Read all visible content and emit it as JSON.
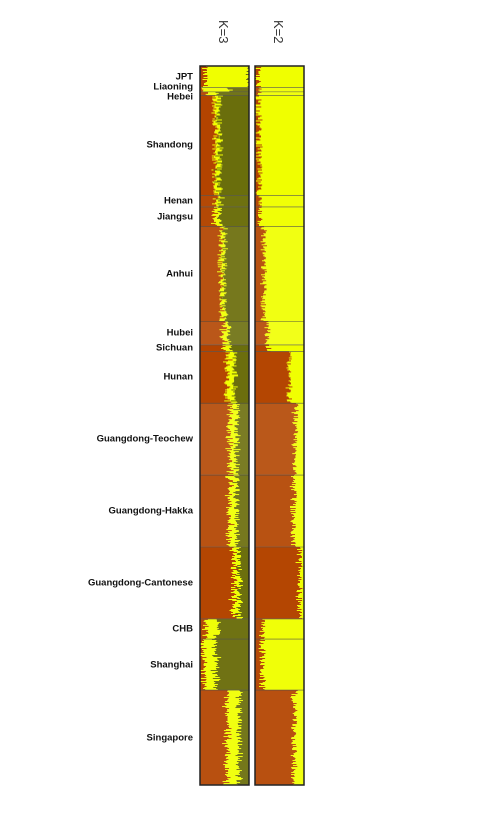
{
  "chart_data": {
    "type": "stacked-bar",
    "panels": [
      {
        "label": "K=3",
        "components": 3
      },
      {
        "label": "K=2",
        "components": 2
      }
    ],
    "colors": {
      "yellow": "#f0ff00",
      "orange": "#b34500",
      "olive": "#6b6e0c",
      "frame": "#222222"
    },
    "populations": [
      {
        "name": "JPT",
        "span": [
          0.0,
          0.03
        ],
        "k3": [
          0.9,
          0.1,
          0.0
        ],
        "k2": [
          0.95,
          0.05
        ]
      },
      {
        "name": "Liaoning",
        "span": [
          0.03,
          0.036
        ],
        "k3": [
          0.55,
          0.05,
          0.4
        ],
        "k2": [
          0.92,
          0.08
        ]
      },
      {
        "name": "Hebei",
        "span": [
          0.036,
          0.041
        ],
        "k3": [
          0.2,
          0.1,
          0.7
        ],
        "k2": [
          0.92,
          0.08
        ]
      },
      {
        "name": "Shandong",
        "span": [
          0.041,
          0.18
        ],
        "k3": [
          0.1,
          0.3,
          0.6
        ],
        "k2": [
          0.92,
          0.08
        ]
      },
      {
        "name": "Henan",
        "span": [
          0.18,
          0.196
        ],
        "k3": [
          0.1,
          0.32,
          0.58
        ],
        "k2": [
          0.9,
          0.1
        ]
      },
      {
        "name": "Jiangsu",
        "span": [
          0.196,
          0.223
        ],
        "k3": [
          0.1,
          0.3,
          0.6
        ],
        "k2": [
          0.88,
          0.12
        ]
      },
      {
        "name": "Anhui",
        "span": [
          0.223,
          0.355
        ],
        "k3": [
          0.08,
          0.42,
          0.5
        ],
        "k2": [
          0.82,
          0.18
        ]
      },
      {
        "name": "Hubei",
        "span": [
          0.355,
          0.388
        ],
        "k3": [
          0.12,
          0.48,
          0.4
        ],
        "k2": [
          0.75,
          0.25
        ]
      },
      {
        "name": "Sichuan",
        "span": [
          0.388,
          0.397
        ],
        "k3": [
          0.15,
          0.5,
          0.35
        ],
        "k2": [
          0.72,
          0.28
        ]
      },
      {
        "name": "Hunan",
        "span": [
          0.397,
          0.469
        ],
        "k3": [
          0.15,
          0.55,
          0.3
        ],
        "k2": [
          0.3,
          0.7
        ]
      },
      {
        "name": "Guangdong-Teochew",
        "span": [
          0.469,
          0.569
        ],
        "k3": [
          0.15,
          0.6,
          0.25
        ],
        "k2": [
          0.18,
          0.82
        ]
      },
      {
        "name": "Guangdong-Hakka",
        "span": [
          0.569,
          0.669
        ],
        "k3": [
          0.15,
          0.6,
          0.25
        ],
        "k2": [
          0.22,
          0.78
        ]
      },
      {
        "name": "Guangdong-Cantonese",
        "span": [
          0.669,
          0.769
        ],
        "k3": [
          0.12,
          0.68,
          0.2
        ],
        "k2": [
          0.1,
          0.9
        ]
      },
      {
        "name": "CHB",
        "span": [
          0.769,
          0.797
        ],
        "k3": [
          0.25,
          0.1,
          0.65
        ],
        "k2": [
          0.85,
          0.15
        ]
      },
      {
        "name": "Shanghai",
        "span": [
          0.797,
          0.868
        ],
        "k3": [
          0.25,
          0.08,
          0.67
        ],
        "k2": [
          0.85,
          0.15
        ]
      },
      {
        "name": "Singapore",
        "span": [
          0.868,
          1.0
        ],
        "k3": [
          0.25,
          0.55,
          0.2
        ],
        "k2": [
          0.2,
          0.8
        ]
      }
    ]
  }
}
